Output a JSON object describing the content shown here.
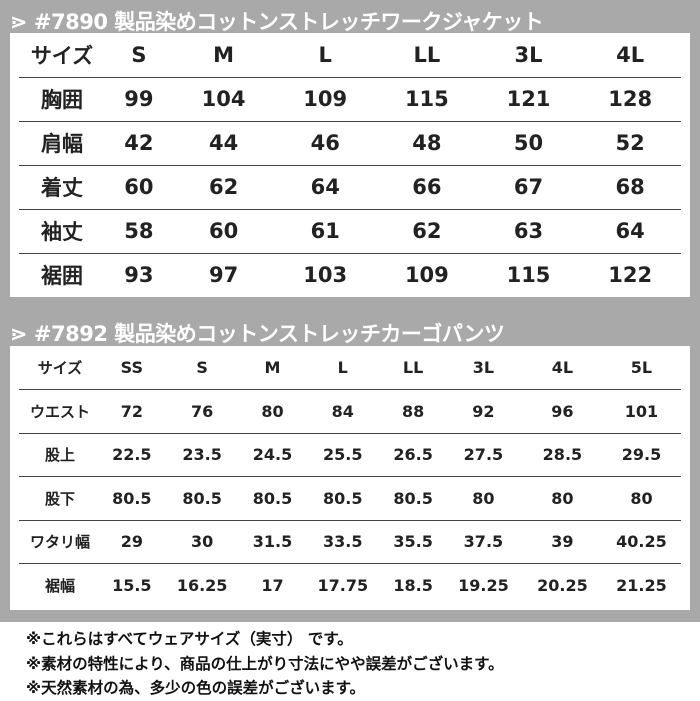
{
  "jacket": {
    "title": "⋗ #7890  製品染めコットンストレッチワークジャケット",
    "header": [
      "サイズ",
      "S",
      "M",
      "L",
      "LL",
      "3L",
      "4L"
    ],
    "rows": [
      [
        "胸囲",
        "99",
        "104",
        "109",
        "115",
        "121",
        "128"
      ],
      [
        "肩幅",
        "42",
        "44",
        "46",
        "48",
        "50",
        "52"
      ],
      [
        "着丈",
        "60",
        "62",
        "64",
        "66",
        "67",
        "68"
      ],
      [
        "袖丈",
        "58",
        "60",
        "61",
        "62",
        "63",
        "64"
      ],
      [
        "裾囲",
        "93",
        "97",
        "103",
        "109",
        "115",
        "122"
      ]
    ]
  },
  "pants": {
    "title": "⋗ #7892  製品染めコットンストレッチカーゴパンツ",
    "header": [
      "サイズ",
      "SS",
      "S",
      "M",
      "L",
      "LL",
      "3L",
      "4L",
      "5L"
    ],
    "rows": [
      [
        "ウエスト",
        "72",
        "76",
        "80",
        "84",
        "88",
        "92",
        "96",
        "101"
      ],
      [
        "股上",
        "22.5",
        "23.5",
        "24.5",
        "25.5",
        "26.5",
        "27.5",
        "28.5",
        "29.5"
      ],
      [
        "股下",
        "80.5",
        "80.5",
        "80.5",
        "80.5",
        "80.5",
        "80",
        "80",
        "80"
      ],
      [
        "ワタリ幅",
        "29",
        "30",
        "31.5",
        "33.5",
        "35.5",
        "37.5",
        "39",
        "40.25"
      ],
      [
        "裾幅",
        "15.5",
        "16.25",
        "17",
        "17.75",
        "18.5",
        "19.25",
        "20.25",
        "21.25"
      ]
    ]
  },
  "notes": [
    "※これらはすべてウェアサイズ（実寸） です。",
    "※素材の特性により、商品の仕上がり寸法にやや誤差がございます。",
    "※天然素材の為、多少の色の誤差がございます。"
  ],
  "colors": {
    "background": "#a8a9a8",
    "table": "#ffffff"
  }
}
